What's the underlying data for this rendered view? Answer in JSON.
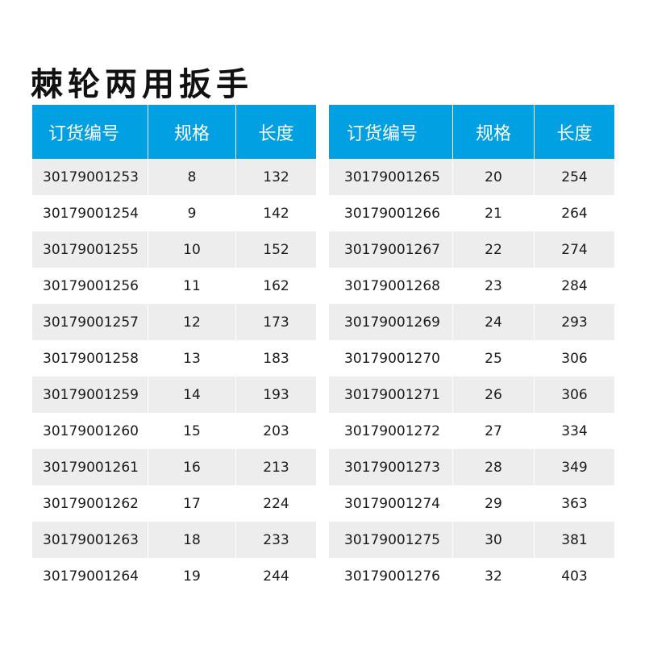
{
  "title": "棘轮两用扳手",
  "header_color": "#00a0e2",
  "headers": [
    "订货编号",
    "规格",
    "长度"
  ],
  "left_table": [
    [
      "30179001253",
      "8",
      "132"
    ],
    [
      "30179001254",
      "9",
      "142"
    ],
    [
      "30179001255",
      "10",
      "152"
    ],
    [
      "30179001256",
      "11",
      "162"
    ],
    [
      "30179001257",
      "12",
      "173"
    ],
    [
      "30179001258",
      "13",
      "183"
    ],
    [
      "30179001259",
      "14",
      "193"
    ],
    [
      "30179001260",
      "15",
      "203"
    ],
    [
      "30179001261",
      "16",
      "213"
    ],
    [
      "30179001262",
      "17",
      "224"
    ],
    [
      "30179001263",
      "18",
      "233"
    ],
    [
      "30179001264",
      "19",
      "244"
    ]
  ],
  "right_table": [
    [
      "30179001265",
      "20",
      "254"
    ],
    [
      "30179001266",
      "21",
      "264"
    ],
    [
      "30179001267",
      "22",
      "274"
    ],
    [
      "30179001268",
      "23",
      "284"
    ],
    [
      "30179001269",
      "24",
      "293"
    ],
    [
      "30179001270",
      "25",
      "306"
    ],
    [
      "30179001271",
      "26",
      "306"
    ],
    [
      "30179001272",
      "27",
      "334"
    ],
    [
      "30179001273",
      "28",
      "349"
    ],
    [
      "30179001274",
      "29",
      "363"
    ],
    [
      "30179001275",
      "30",
      "381"
    ],
    [
      "30179001276",
      "32",
      "403"
    ]
  ]
}
